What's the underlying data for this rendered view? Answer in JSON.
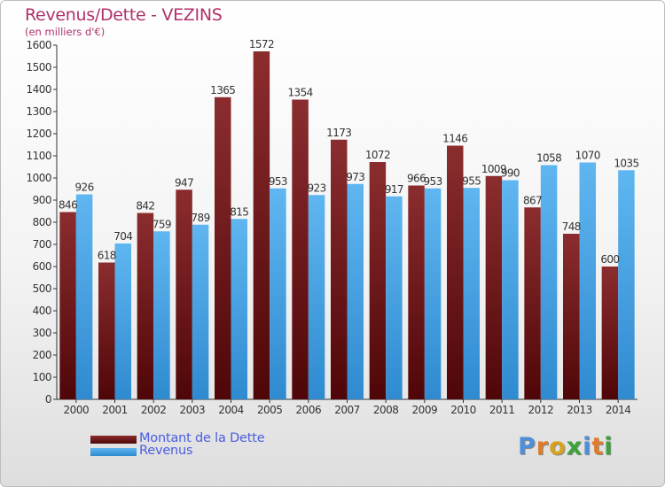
{
  "header": {
    "title": "Revenus/Dette - VEZINS",
    "subtitle": "(en milliers d'€)"
  },
  "legend": {
    "items": [
      {
        "label": "Montant de la Dette",
        "color": "#7a1d1f"
      },
      {
        "label": "Revenus",
        "color": "#4aa6e6"
      }
    ],
    "placement": "bottom-left"
  },
  "logo": {
    "text": "Proxiti",
    "letters": [
      "P",
      "r",
      "o",
      "x",
      "i",
      "t",
      "i"
    ],
    "colors": [
      "#4e8fd8",
      "#e07b2a",
      "#d9a21c",
      "#3aa33a",
      "#4e8fd8",
      "#e07b2a",
      "#3aa33a"
    ]
  },
  "chart_data": {
    "type": "bar",
    "title": "Revenus/Dette - VEZINS",
    "subtitle": "(en milliers d'€)",
    "categories": [
      "2000",
      "2001",
      "2002",
      "2003",
      "2004",
      "2005",
      "2006",
      "2007",
      "2008",
      "2009",
      "2010",
      "2011",
      "2012",
      "2013",
      "2014"
    ],
    "series": [
      {
        "name": "Montant de la Dette",
        "color": "#7a1d1f",
        "values": [
          846,
          618,
          842,
          947,
          1365,
          1572,
          1354,
          1173,
          1072,
          966,
          1146,
          1009,
          867,
          748,
          600
        ]
      },
      {
        "name": "Revenus",
        "color": "#4aa6e6",
        "values": [
          926,
          704,
          759,
          789,
          815,
          953,
          923,
          973,
          917,
          953,
          955,
          990,
          1058,
          1070,
          1035
        ]
      }
    ],
    "ylim": [
      0,
      1600
    ],
    "yticks": [
      0,
      100,
      200,
      300,
      400,
      500,
      600,
      700,
      800,
      900,
      1000,
      1100,
      1200,
      1300,
      1400,
      1500,
      1600
    ],
    "grid": false,
    "legend_position": "bottom-left"
  }
}
